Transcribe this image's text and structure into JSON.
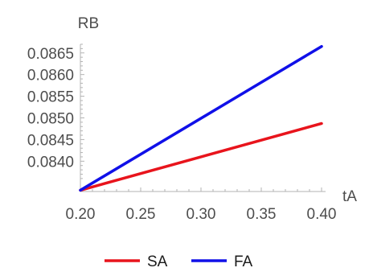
{
  "chart_data": {
    "type": "line",
    "title": "",
    "xlabel": "tA",
    "ylabel": "RB",
    "xlim": [
      0.2,
      0.4
    ],
    "ylim": [
      0.0833,
      0.0867
    ],
    "x_ticks": [
      0.2,
      0.25,
      0.3,
      0.35,
      0.4
    ],
    "x_tick_labels": [
      "0.20",
      "0.25",
      "0.30",
      "0.35",
      "0.40"
    ],
    "y_ticks": [
      0.084,
      0.0845,
      0.085,
      0.0855,
      0.086,
      0.0865
    ],
    "y_tick_labels": [
      "0.0840",
      "0.0845",
      "0.0850",
      "0.0855",
      "0.0860",
      "0.0865"
    ],
    "grid": false,
    "legend_position": "bottom",
    "series": [
      {
        "name": "SA",
        "color": "#e8141c",
        "x": [
          0.2,
          0.4
        ],
        "y": [
          0.08333,
          0.08487
        ]
      },
      {
        "name": "FA",
        "color": "#1010e8",
        "x": [
          0.2,
          0.4
        ],
        "y": [
          0.08333,
          0.08665
        ]
      }
    ]
  }
}
